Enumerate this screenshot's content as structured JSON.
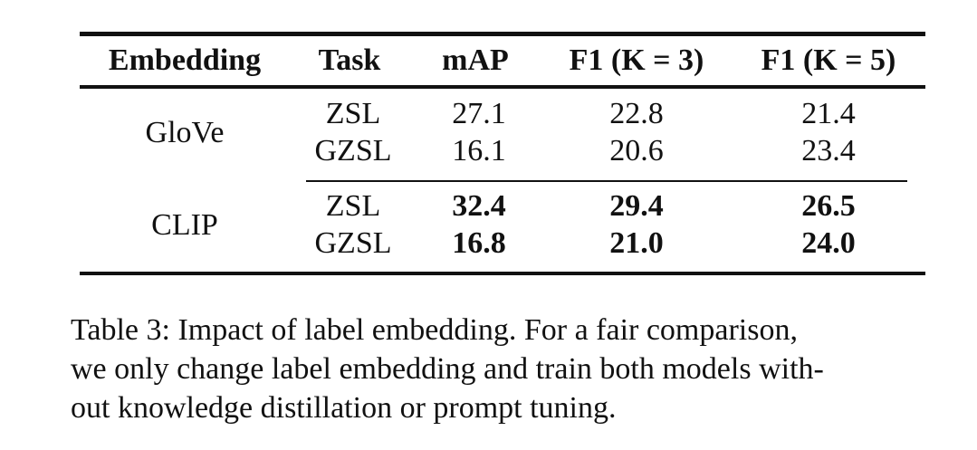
{
  "table": {
    "headers": [
      "Embedding",
      "Task",
      "mAP",
      "F1 (K = 3)",
      "F1 (K = 5)"
    ],
    "groups": [
      {
        "embedding": "GloVe",
        "rows": [
          {
            "task": "ZSL",
            "map": "27.1",
            "f1_k3": "22.8",
            "f1_k5": "21.4",
            "bold": false
          },
          {
            "task": "GZSL",
            "map": "16.1",
            "f1_k3": "20.6",
            "f1_k5": "23.4",
            "bold": false
          }
        ]
      },
      {
        "embedding": "CLIP",
        "rows": [
          {
            "task": "ZSL",
            "map": "32.4",
            "f1_k3": "29.4",
            "f1_k5": "26.5",
            "bold": true
          },
          {
            "task": "GZSL",
            "map": "16.8",
            "f1_k3": "21.0",
            "f1_k5": "24.0",
            "bold": true
          }
        ]
      }
    ]
  },
  "caption": {
    "lines": [
      "Table 3: Impact of label embedding. For a fair comparison,",
      "we only change label embedding and train both models with-",
      "out knowledge distillation or prompt tuning."
    ]
  }
}
